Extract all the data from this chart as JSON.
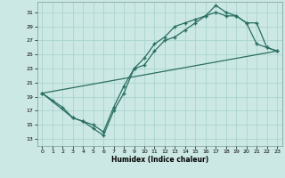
{
  "xlabel": "Humidex (Indice chaleur)",
  "ylabel": "",
  "bg_color": "#cce8e4",
  "grid_color": "#aad4ce",
  "line_color": "#2a6e62",
  "xlim": [
    -0.5,
    23.5
  ],
  "ylim": [
    12,
    32.5
  ],
  "xticks": [
    0,
    1,
    2,
    3,
    4,
    5,
    6,
    7,
    8,
    9,
    10,
    11,
    12,
    13,
    14,
    15,
    16,
    17,
    18,
    19,
    20,
    21,
    22,
    23
  ],
  "yticks": [
    13,
    15,
    17,
    19,
    21,
    23,
    25,
    27,
    29,
    31
  ],
  "line1_x": [
    0,
    1,
    2,
    3,
    4,
    5,
    6,
    7,
    8,
    9,
    10,
    11,
    12,
    13,
    14,
    15,
    16,
    17,
    18,
    19,
    20,
    21,
    22,
    23
  ],
  "line1_y": [
    19.5,
    18.5,
    17.5,
    16.0,
    15.5,
    14.5,
    13.5,
    17.0,
    19.5,
    23.0,
    23.5,
    25.5,
    27.0,
    27.5,
    28.5,
    29.5,
    30.5,
    32.0,
    31.0,
    30.5,
    29.5,
    29.5,
    26.0,
    25.5
  ],
  "line2_x": [
    0,
    3,
    4,
    5,
    6,
    7,
    8,
    9,
    10,
    11,
    12,
    13,
    14,
    15,
    16,
    17,
    18,
    19,
    20,
    21,
    22,
    23
  ],
  "line2_y": [
    19.5,
    16.0,
    15.5,
    15.0,
    14.0,
    17.5,
    20.5,
    23.0,
    24.5,
    26.5,
    27.5,
    29.0,
    29.5,
    30.0,
    30.5,
    31.0,
    30.5,
    30.5,
    29.5,
    26.5,
    26.0,
    25.5
  ],
  "line3_x": [
    0,
    23
  ],
  "line3_y": [
    19.5,
    25.5
  ],
  "figsize": [
    3.2,
    2.0
  ],
  "dpi": 100
}
